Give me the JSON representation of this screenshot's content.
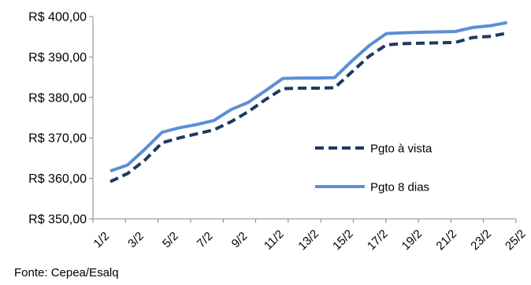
{
  "chart_data": {
    "type": "line",
    "categories": [
      "1/2",
      "2/2",
      "3/2",
      "4/2",
      "5/2",
      "6/2",
      "7/2",
      "8/2",
      "9/2",
      "10/2",
      "11/2",
      "12/2",
      "13/2",
      "14/2",
      "15/2",
      "16/2",
      "17/2",
      "18/2",
      "19/2",
      "20/2",
      "21/2",
      "22/2",
      "23/2",
      "24/2"
    ],
    "tick_labels": [
      "1/2",
      "3/2",
      "5/2",
      "7/2",
      "9/2",
      "11/2",
      "13/2",
      "15/2",
      "17/2",
      "19/2",
      "21/2",
      "23/2",
      "25/2"
    ],
    "series": [
      {
        "name": "Pgto à vista",
        "color": "#1f3864",
        "style": "dashed",
        "values": [
          359.2,
          361.2,
          364.5,
          368.8,
          370.0,
          371.0,
          372.0,
          374.0,
          376.5,
          379.5,
          382.2,
          382.3,
          382.3,
          382.4,
          386.3,
          390.2,
          393.0,
          393.3,
          393.4,
          393.5,
          393.6,
          394.8,
          395.1,
          395.9
        ]
      },
      {
        "name": "Pgto 8 dias",
        "color": "#5b8fd6",
        "style": "solid",
        "values": [
          361.8,
          363.3,
          367.2,
          371.4,
          372.5,
          373.3,
          374.3,
          377.0,
          378.8,
          381.7,
          384.7,
          384.8,
          384.8,
          384.9,
          389.0,
          392.8,
          395.8,
          396.0,
          396.1,
          396.2,
          396.3,
          397.3,
          397.7,
          398.5
        ]
      }
    ],
    "y_tick_values": [
      350,
      360,
      370,
      380,
      390,
      400
    ],
    "y_tick_labels": [
      "R$ 350,00",
      "R$ 360,00",
      "R$ 370,00",
      "R$ 380,00",
      "R$ 390,00",
      "R$ 400,00"
    ],
    "ylim": [
      350,
      400
    ],
    "grid": false,
    "legend_position": "right-middle",
    "xlabel": "",
    "ylabel": ""
  },
  "source_note": "Fonte: Cepea/Esalq"
}
